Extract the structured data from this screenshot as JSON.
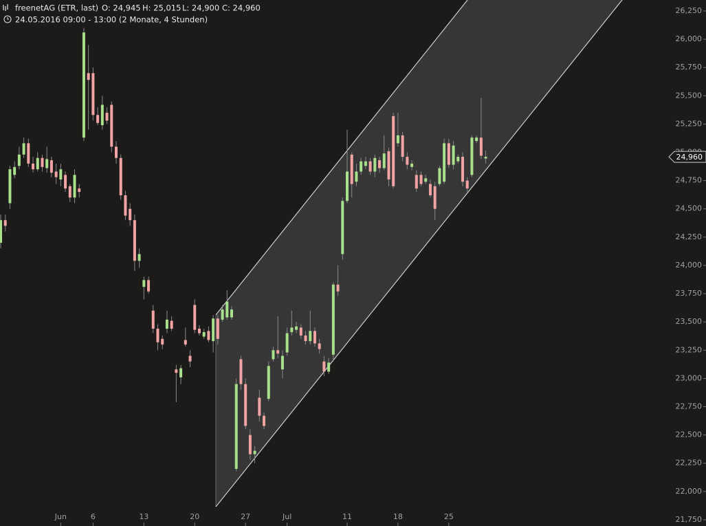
{
  "chart_data": {
    "type": "candlestick",
    "title": "freenetAG (ETR, last)",
    "ohlc_header": [
      "O: 24,945",
      "H: 25,015",
      "L: 24,900",
      "C: 24,960"
    ],
    "subtitle": "24.05.2016 09:00 - 13:00 (2 Monate, 4 Stunden)",
    "last_price_label": "24,960",
    "up_color": "#a8e08c",
    "down_color": "#f2a4a4",
    "wick_color": "#8a8a8a",
    "categories": [
      null,
      null,
      null,
      null,
      null,
      null,
      null,
      null,
      null,
      null,
      null,
      null,
      null,
      "Jun",
      null,
      null,
      null,
      null,
      null,
      null,
      "6",
      null,
      null,
      null,
      null,
      null,
      null,
      null,
      null,
      null,
      null,
      "13",
      null,
      null,
      null,
      null,
      null,
      null,
      null,
      null,
      null,
      null,
      "20",
      null,
      null,
      null,
      null,
      null,
      null,
      null,
      null,
      null,
      null,
      "27",
      null,
      null,
      null,
      null,
      null,
      null,
      null,
      null,
      "Jul",
      null,
      null,
      null,
      null,
      null,
      null,
      null,
      null,
      null,
      null,
      null,
      null,
      "11",
      null,
      null,
      null,
      null,
      null,
      null,
      null,
      null,
      null,
      null,
      "18",
      null,
      null,
      null,
      null,
      null,
      null,
      null,
      null,
      null,
      null,
      "25",
      null,
      null,
      null,
      null,
      null,
      null,
      null,
      null
    ],
    "open": [
      24200,
      24400,
      24550,
      24800,
      24880,
      24980,
      25080,
      24900,
      24850,
      24950,
      24860,
      24930,
      24830,
      24760,
      24800,
      24700,
      24600,
      24680,
      25130,
      25700,
      25700,
      25330,
      25240,
      25350,
      25420,
      25050,
      24950,
      24620,
      24500,
      24400,
      24040,
      23810,
      23870,
      23600,
      23440,
      23350,
      23440,
      23510,
      23080,
      23010,
      23340,
      23200,
      23650,
      23440,
      23370,
      23420,
      23330,
      23530,
      23520,
      23540,
      23540,
      22200,
      23170,
      22950,
      22500,
      22330,
      22830,
      22670,
      22820,
      23170,
      23250,
      23080,
      23230,
      23410,
      23430,
      23450,
      23380,
      23330,
      23420,
      23310,
      23150,
      23060,
      23210,
      23830,
      24100,
      24570,
      24980,
      24740,
      24830,
      24880,
      24920,
      24830,
      24930,
      24860,
      25010,
      25320,
      25080,
      25150,
      24960,
      24870,
      24800,
      24800,
      24740,
      24720,
      24700,
      24720,
      24740,
      25080,
      24890,
      24920,
      24960,
      24750,
      24800,
      25100,
      25130,
      24945
    ],
    "high": [
      24450,
      24450,
      24880,
      24920,
      25050,
      25130,
      25120,
      24960,
      25000,
      24980,
      25050,
      24960,
      24900,
      24900,
      24830,
      24720,
      24850,
      24720,
      26100,
      25950,
      25750,
      25400,
      25500,
      25400,
      25450,
      25100,
      24980,
      24660,
      24550,
      24450,
      24150,
      23900,
      23900,
      23650,
      23480,
      23380,
      23600,
      23550,
      23120,
      23120,
      23450,
      23250,
      23700,
      23470,
      23440,
      23460,
      23560,
      23560,
      23650,
      23780,
      23640,
      23000,
      23200,
      23000,
      22550,
      22400,
      22900,
      22700,
      23150,
      23280,
      23550,
      23250,
      23450,
      23600,
      23500,
      23480,
      23420,
      23600,
      23450,
      23350,
      23200,
      23180,
      23850,
      24000,
      24600,
      25200,
      25000,
      24900,
      24950,
      24960,
      24950,
      24980,
      24960,
      25150,
      25040,
      25350,
      25350,
      25180,
      25000,
      24930,
      24840,
      24830,
      24800,
      24760,
      24740,
      24880,
      25120,
      25120,
      25100,
      24980,
      25000,
      24780,
      25150,
      25150,
      25480,
      25015
    ],
    "low": [
      24150,
      24300,
      24500,
      24770,
      24850,
      24950,
      24870,
      24820,
      24830,
      24830,
      24820,
      24780,
      24720,
      24700,
      24650,
      24560,
      24550,
      24600,
      25100,
      25200,
      25280,
      25240,
      25200,
      25250,
      25000,
      24900,
      24580,
      24400,
      24350,
      23950,
      23980,
      23700,
      23750,
      23400,
      23250,
      23260,
      23400,
      23420,
      22790,
      22950,
      23280,
      23100,
      23400,
      23380,
      23350,
      23320,
      23230,
      23300,
      23500,
      23520,
      23520,
      22180,
      22900,
      22550,
      22280,
      22250,
      22620,
      22550,
      22800,
      23150,
      23180,
      23000,
      23200,
      23380,
      23400,
      23350,
      23300,
      23300,
      23280,
      23220,
      23020,
      23040,
      23150,
      23730,
      24050,
      24550,
      24600,
      24700,
      24800,
      24850,
      24800,
      24780,
      24820,
      24840,
      24700,
      24680,
      25050,
      24920,
      24850,
      24840,
      24650,
      24700,
      24720,
      24600,
      24400,
      24700,
      24720,
      24860,
      24850,
      24900,
      24700,
      24650,
      24780,
      25080,
      24940,
      24900
    ],
    "close": [
      24400,
      24350,
      24850,
      24870,
      24980,
      25080,
      24900,
      24850,
      24950,
      24870,
      24940,
      24820,
      24780,
      24850,
      24680,
      24600,
      24800,
      24650,
      26060,
      25640,
      25330,
      25260,
      25420,
      25280,
      25050,
      24950,
      24620,
      24440,
      24400,
      24040,
      24100,
      23870,
      23770,
      23440,
      23320,
      23300,
      23520,
      23440,
      23050,
      23090,
      23300,
      23150,
      23430,
      23400,
      23410,
      23340,
      23530,
      23350,
      23610,
      23680,
      23610,
      22950,
      22950,
      22580,
      22330,
      22360,
      22670,
      22580,
      23110,
      23250,
      23220,
      23200,
      23400,
      23450,
      23460,
      23380,
      23330,
      23420,
      23310,
      23260,
      23060,
      23140,
      23830,
      23770,
      24570,
      24830,
      24720,
      24830,
      24920,
      24920,
      24830,
      24950,
      24860,
      24990,
      24760,
      24700,
      25150,
      24960,
      24890,
      24900,
      24680,
      24720,
      24770,
      24620,
      24500,
      24860,
      25080,
      24890,
      25060,
      24960,
      24740,
      24680,
      25130,
      25130,
      24970,
      24960
    ],
    "ylim": [
      21695,
      26347
    ],
    "yticks": [
      {
        "value": 21750,
        "label": "21,750"
      },
      {
        "value": 22000,
        "label": "22,000"
      },
      {
        "value": 22250,
        "label": "22,250"
      },
      {
        "value": 22500,
        "label": "22,500"
      },
      {
        "value": 22750,
        "label": "22,750"
      },
      {
        "value": 23000,
        "label": "23,000"
      },
      {
        "value": 23250,
        "label": "23,250"
      },
      {
        "value": 23500,
        "label": "23,500"
      },
      {
        "value": 23750,
        "label": "23,750"
      },
      {
        "value": 24000,
        "label": "24,000"
      },
      {
        "value": 24250,
        "label": "24,250"
      },
      {
        "value": 24500,
        "label": "24,500"
      },
      {
        "value": 24750,
        "label": "24,750"
      },
      {
        "value": 25000,
        "label": "25,000"
      },
      {
        "value": 25250,
        "label": "25,250"
      },
      {
        "value": 25500,
        "label": "25,500"
      },
      {
        "value": 25750,
        "label": "25,750"
      },
      {
        "value": 26000,
        "label": "26,000"
      },
      {
        "value": 26250,
        "label": "26,250"
      }
    ]
  }
}
